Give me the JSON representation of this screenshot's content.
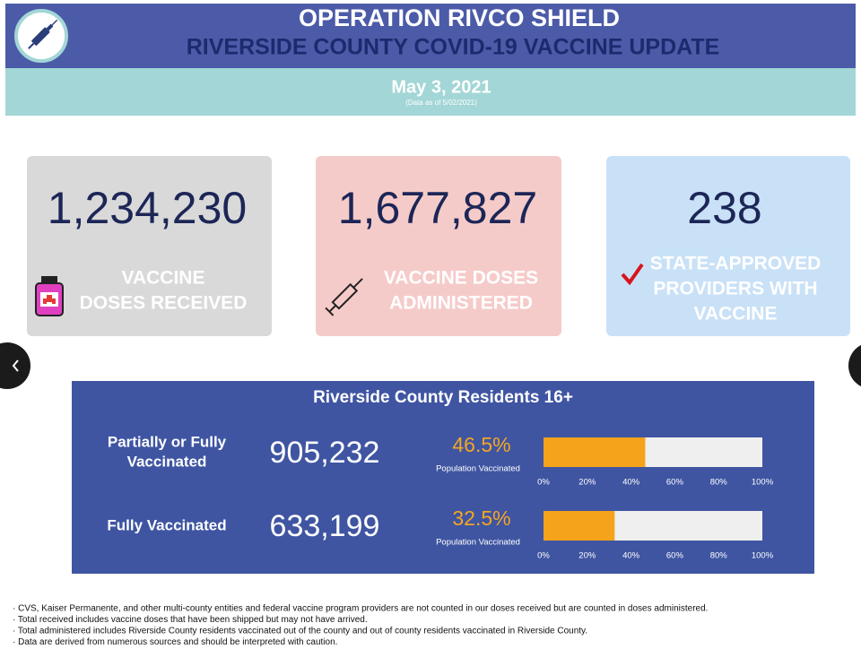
{
  "header": {
    "title": "OPERATION RIVCO SHIELD",
    "subtitle": "RIVERSIDE COUNTY COVID-19 VACCINE UPDATE",
    "date": "May 3, 2021",
    "data_note": "(Data as of 5/02/2021)"
  },
  "cards": [
    {
      "value": "1,234,230",
      "label_lines": [
        "VACCINE",
        "DOSES RECEIVED"
      ]
    },
    {
      "value": "1,677,827",
      "label_lines": [
        "VACCINE DOSES",
        "ADMINISTERED"
      ]
    },
    {
      "value": "238",
      "label_lines": [
        "STATE-APPROVED",
        "PROVIDERS WITH",
        "VACCINE"
      ]
    }
  ],
  "residents": {
    "title": "Riverside County Residents 16+",
    "xlim": [
      0,
      100
    ],
    "xticks": [
      {
        "value": 0,
        "label": "0%"
      },
      {
        "value": 20,
        "label": "20%"
      },
      {
        "value": 40,
        "label": "40%"
      },
      {
        "value": 60,
        "label": "60%"
      },
      {
        "value": 80,
        "label": "80%"
      },
      {
        "value": 100,
        "label": "100%"
      }
    ],
    "rows": [
      {
        "label_lines": [
          "Partially or Fully",
          "Vaccinated"
        ],
        "count": "905,232",
        "percent": 46.5,
        "percent_label": "46.5%",
        "caption": "Population Vaccinated"
      },
      {
        "label_lines": [
          "Fully Vaccinated"
        ],
        "count": "633,199",
        "percent": 32.5,
        "percent_label": "32.5%",
        "caption": "Population Vaccinated"
      }
    ]
  },
  "footnotes": [
    "· CVS, Kaiser Permanente, and other multi-county entities and federal vaccine program providers are not counted in our doses received but are counted in doses administered.",
    "· Total received includes vaccine doses that have been shipped but may not have arrived.",
    "· Total administered includes Riverside County residents vaccinated out of the county and out of county residents vaccinated in Riverside County.",
    "· Data are derived from numerous sources and should be interpreted with caution."
  ]
}
